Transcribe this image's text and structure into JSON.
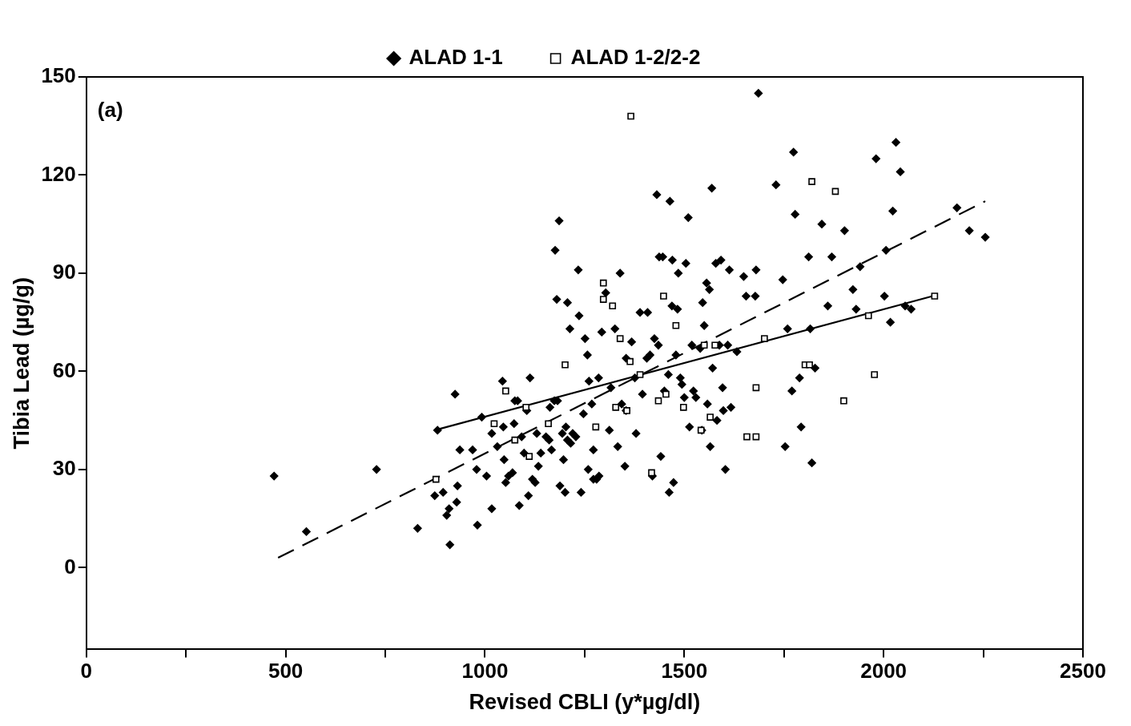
{
  "chart_data": {
    "type": "scatter",
    "xlabel": "Revised CBLI (y*µg/dl)",
    "ylabel": "Tibia Lead (µg/g)",
    "annotations": [
      "(a)"
    ],
    "legend": "top",
    "grid": false,
    "xlim": [
      0,
      2500
    ],
    "xticks": [
      0,
      {
        "value": 250,
        "label": null
      },
      500,
      {
        "value": 750,
        "label": null
      },
      1000,
      {
        "value": 1250,
        "label": null
      },
      1500,
      {
        "value": 1750,
        "label": null
      },
      2000,
      {
        "value": 2250,
        "label": null
      },
      2500
    ],
    "ylim": [
      -25,
      150
    ],
    "yticks": [
      0,
      30,
      60,
      90,
      120,
      150
    ],
    "series": [
      {
        "name": "ALAD 1-1",
        "type": "scatter",
        "marker": "diamond",
        "color": "#000000",
        "x": [
          471,
          552,
          728,
          831,
          881,
          874,
          895,
          904,
          910,
          912,
          925,
          929,
          931,
          937,
          969,
          979,
          981,
          992,
          1004,
          1017,
          1017,
          1031,
          1044,
          1046,
          1048,
          1052,
          1059,
          1069,
          1073,
          1075,
          1082,
          1086,
          1092,
          1098,
          1105,
          1109,
          1113,
          1119,
          1126,
          1130,
          1134,
          1140,
          1153,
          1161,
          1163,
          1167,
          1174,
          1176,
          1180,
          1182,
          1186,
          1188,
          1194,
          1197,
          1201,
          1203,
          1207,
          1207,
          1213,
          1215,
          1220,
          1228,
          1234,
          1236,
          1241,
          1247,
          1251,
          1257,
          1259,
          1261,
          1268,
          1272,
          1272,
          1280,
          1285,
          1286,
          1293,
          1303,
          1312,
          1316,
          1326,
          1333,
          1339,
          1343,
          1351,
          1354,
          1354,
          1368,
          1376,
          1379,
          1389,
          1395,
          1406,
          1408,
          1414,
          1420,
          1425,
          1431,
          1435,
          1437,
          1441,
          1446,
          1450,
          1460,
          1464,
          1469,
          1470,
          1473,
          1462,
          1479,
          1483,
          1485,
          1490,
          1494,
          1500,
          1504,
          1510,
          1513,
          1519,
          1523,
          1529,
          1540,
          1544,
          1546,
          1550,
          1556,
          1558,
          1563,
          1565,
          1569,
          1571,
          1579,
          1582,
          1588,
          1592,
          1596,
          1598,
          1603,
          1609,
          1613,
          1617,
          1632,
          1649,
          1655,
          1678,
          1680,
          1686,
          1730,
          1747,
          1753,
          1759,
          1770,
          1774,
          1778,
          1789,
          1793,
          1812,
          1816,
          1820,
          1828,
          1845,
          1860,
          1870,
          1902,
          1923,
          1931,
          1941,
          1981,
          2002,
          2017,
          2023,
          2031,
          2042,
          2054,
          2069,
          2184,
          2215,
          2255,
          2006
        ],
        "values": [
          28,
          11,
          30,
          12,
          42,
          22,
          23,
          16,
          18,
          7,
          53,
          20,
          25,
          36,
          36,
          30,
          13,
          46,
          28,
          18,
          41,
          37,
          57,
          43,
          33,
          26,
          28,
          29,
          44,
          51,
          51,
          19,
          40,
          35,
          48,
          22,
          58,
          27,
          26,
          41,
          31,
          35,
          40,
          39,
          49,
          36,
          51,
          97,
          82,
          51,
          106,
          25,
          41,
          33,
          23,
          43,
          39,
          81,
          73,
          38,
          41,
          40,
          91,
          77,
          23,
          47,
          70,
          65,
          30,
          57,
          50,
          36,
          27,
          27,
          58,
          28,
          72,
          84,
          42,
          55,
          73,
          37,
          90,
          50,
          31,
          64,
          48,
          69,
          58,
          41,
          78,
          53,
          64,
          78,
          65,
          28,
          70,
          114,
          68,
          95,
          34,
          95,
          54,
          59,
          112,
          80,
          94,
          26,
          23,
          65,
          79,
          90,
          58,
          56,
          52,
          93,
          107,
          43,
          68,
          54,
          52,
          67,
          42,
          81,
          74,
          87,
          50,
          85,
          37,
          116,
          61,
          93,
          45,
          68,
          94,
          55,
          48,
          30,
          68,
          91,
          49,
          66,
          89,
          83,
          83,
          91,
          145,
          117,
          88,
          37,
          73,
          54,
          127,
          108,
          58,
          43,
          95,
          73,
          32,
          61,
          105,
          80,
          95,
          103,
          85,
          79,
          92,
          125,
          83,
          75,
          109,
          130,
          121,
          80,
          79,
          110,
          103,
          101,
          97
        ]
      },
      {
        "name": "ALAD 1-2/2-2",
        "type": "scatter",
        "marker": "square",
        "color": "#000000",
        "x": [
          877,
          1023,
          1052,
          1103,
          1075,
          1111,
          1159,
          1201,
          1278,
          1297,
          1297,
          1320,
          1328,
          1339,
          1356,
          1364,
          1366,
          1389,
          1418,
          1435,
          1448,
          1454,
          1479,
          1498,
          1542,
          1550,
          1565,
          1577,
          1657,
          1680,
          1680,
          1701,
          1803,
          1814,
          1820,
          1879,
          1900,
          1962,
          1977,
          2128
        ],
        "values": [
          27,
          44,
          54,
          49,
          39,
          34,
          44,
          62,
          43,
          87,
          82,
          80,
          49,
          70,
          48,
          63,
          138,
          59,
          29,
          51,
          83,
          53,
          74,
          49,
          42,
          68,
          46,
          68,
          40,
          55,
          40,
          70,
          62,
          62,
          118,
          115,
          51,
          77,
          59,
          83
        ]
      },
      {
        "type": "line",
        "line_style": "dashed",
        "marker": "none",
        "color": "#000000",
        "x": [
          481,
          2255
        ],
        "values": [
          3,
          112
        ]
      },
      {
        "type": "line",
        "line_style": "solid",
        "marker": "none",
        "color": "#000000",
        "x": [
          874,
          2123
        ],
        "values": [
          42,
          83
        ]
      }
    ]
  }
}
